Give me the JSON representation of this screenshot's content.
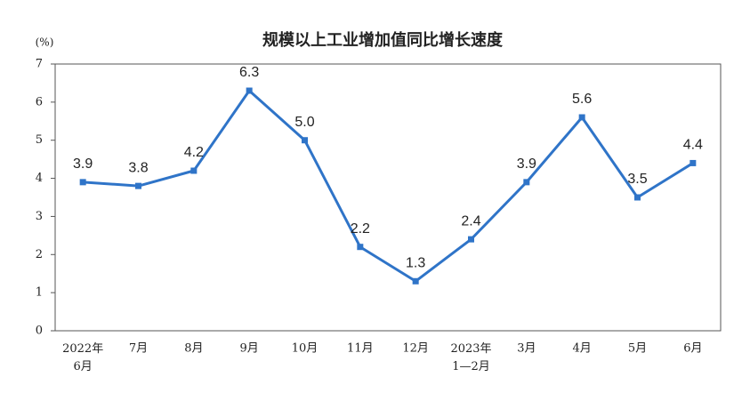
{
  "chart_data": {
    "type": "line",
    "title": "规模以上工业增加值同比增长速度",
    "y_label": "(%)",
    "categories": [
      "2022年\n6月",
      "7月",
      "8月",
      "9月",
      "10月",
      "11月",
      "12月",
      "2023年\n1—2月",
      "3月",
      "4月",
      "5月",
      "6月"
    ],
    "series": [
      {
        "color": "#2f74c8",
        "values": [
          3.9,
          3.8,
          4.2,
          6.3,
          5.0,
          2.2,
          1.3,
          2.4,
          3.9,
          5.6,
          3.5,
          4.4
        ],
        "value_labels": [
          "3.9",
          "3.8",
          "4.2",
          "6.3",
          "5.0",
          "2.2",
          "1.3",
          "2.4",
          "3.9",
          "5.6",
          "3.5",
          "4.4"
        ]
      }
    ],
    "ylim": [
      0,
      7
    ],
    "yticks": [
      0,
      1,
      2,
      3,
      4,
      5,
      6,
      7
    ],
    "grid": false
  }
}
